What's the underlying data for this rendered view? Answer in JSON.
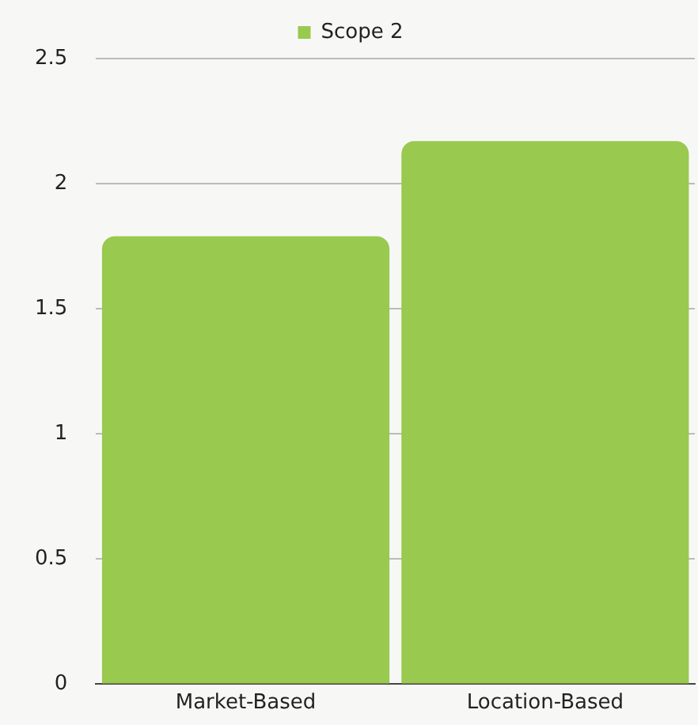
{
  "chart_data": {
    "type": "bar",
    "categories": [
      "Market-Based",
      "Location-Based"
    ],
    "series": [
      {
        "name": "Scope 2",
        "color": "#99c94f",
        "values": [
          1.79,
          2.17
        ]
      }
    ],
    "ylim": [
      0,
      2.5
    ],
    "yticks": [
      0,
      0.5,
      1,
      1.5,
      2,
      2.5
    ],
    "grid": "y",
    "legend": "top"
  }
}
